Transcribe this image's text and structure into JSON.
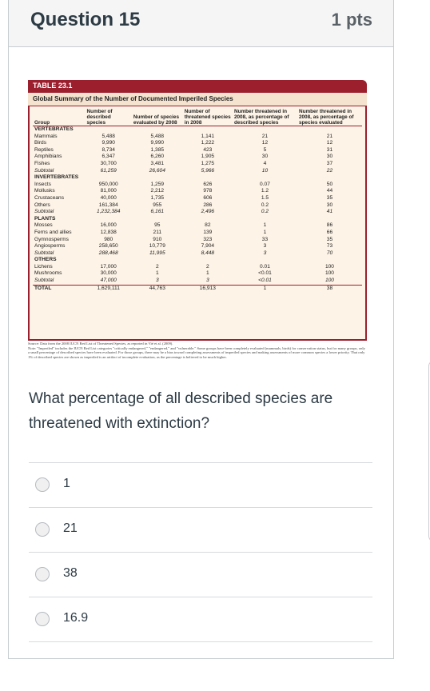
{
  "question": {
    "title": "Question 15",
    "points": "1 pts",
    "text": "What percentage of all described species are threatened with extinction?"
  },
  "figure": {
    "tag": "TABLE 23.1",
    "title": "Global Summary of the Number of Documented Imperiled Species",
    "headers": [
      "Group",
      "Number of described species",
      "Number of species evaluated by 2008",
      "Number of threatened species in 2008",
      "Number threatened in 2008, as percentage of described species",
      "Number threatened in 2008, as percentage of species evaluated"
    ],
    "rows": [
      {
        "kind": "group",
        "cells": [
          "VERTEBRATES",
          "",
          "",
          "",
          "",
          ""
        ]
      },
      {
        "kind": "row",
        "cells": [
          "Mammals",
          "5,488",
          "5,488",
          "1,141",
          "21",
          "21"
        ]
      },
      {
        "kind": "row",
        "cells": [
          "Birds",
          "9,990",
          "9,990",
          "1,222",
          "12",
          "12"
        ]
      },
      {
        "kind": "row",
        "cells": [
          "Reptiles",
          "8,734",
          "1,385",
          "423",
          "5",
          "31"
        ]
      },
      {
        "kind": "row",
        "cells": [
          "Amphibians",
          "6,347",
          "6,260",
          "1,905",
          "30",
          "30"
        ]
      },
      {
        "kind": "row",
        "cells": [
          "Fishes",
          "30,700",
          "3,481",
          "1,275",
          "4",
          "37"
        ]
      },
      {
        "kind": "sub",
        "cells": [
          "Subtotal",
          "61,259",
          "26,604",
          "5,966",
          "10",
          "22"
        ]
      },
      {
        "kind": "group",
        "cells": [
          "INVERTEBRATES",
          "",
          "",
          "",
          "",
          ""
        ]
      },
      {
        "kind": "row",
        "cells": [
          "Insects",
          "950,000",
          "1,259",
          "626",
          "0.07",
          "50"
        ]
      },
      {
        "kind": "row",
        "cells": [
          "Mollusks",
          "81,000",
          "2,212",
          "978",
          "1.2",
          "44"
        ]
      },
      {
        "kind": "row",
        "cells": [
          "Crustaceans",
          "40,000",
          "1,735",
          "606",
          "1.5",
          "35"
        ]
      },
      {
        "kind": "row",
        "cells": [
          "Others",
          "161,384",
          "955",
          "286",
          "0.2",
          "30"
        ]
      },
      {
        "kind": "sub",
        "cells": [
          "Subtotal",
          "1,232,384",
          "6,161",
          "2,496",
          "0.2",
          "41"
        ]
      },
      {
        "kind": "group",
        "cells": [
          "PLANTS",
          "",
          "",
          "",
          "",
          ""
        ]
      },
      {
        "kind": "row",
        "cells": [
          "Mosses",
          "16,000",
          "95",
          "82",
          "1",
          "86"
        ]
      },
      {
        "kind": "row",
        "cells": [
          "Ferns and allies",
          "12,838",
          "211",
          "139",
          "1",
          "66"
        ]
      },
      {
        "kind": "row",
        "cells": [
          "Gymnosperms",
          "980",
          "910",
          "323",
          "33",
          "35"
        ]
      },
      {
        "kind": "row",
        "cells": [
          "Angiosperms",
          "258,650",
          "10,779",
          "7,904",
          "3",
          "73"
        ]
      },
      {
        "kind": "sub",
        "cells": [
          "Subtotal",
          "288,468",
          "11,995",
          "8,448",
          "3",
          "70"
        ]
      },
      {
        "kind": "group",
        "cells": [
          "OTHERS",
          "",
          "",
          "",
          "",
          ""
        ]
      },
      {
        "kind": "row",
        "cells": [
          "Lichens",
          "17,000",
          "2",
          "2",
          "0.01",
          "100"
        ]
      },
      {
        "kind": "row",
        "cells": [
          "Mushrooms",
          "30,000",
          "1",
          "1",
          "<0.01",
          "100"
        ]
      },
      {
        "kind": "sub",
        "cells": [
          "Subtotal",
          "47,000",
          "3",
          "3",
          "<0.01",
          "100"
        ]
      },
      {
        "kind": "total",
        "cells": [
          "TOTAL",
          "1,629,111",
          "44,763",
          "16,913",
          "1",
          "38"
        ]
      }
    ],
    "source": "Source: Data from the 2008 IUCN Red List of Threatened Species, as reported in Vié et al. (2009).",
    "note": "Note: \"Imperiled\" includes the IUCN Red List categories \"critically endangered,\" \"endangered,\" and \"vulnerable.\" Some groups have been completely evaluated (mammals, birds) for conservation status, but for many groups, only a small percentage of described species have been evaluated. For those groups, there may be a bias toward completing assessments of imperiled species and making assessments of more common species a lower priority. That only 1% of described species are shown as imperiled is an artifact of incomplete evaluation, as the percentage is believed to be much higher."
  },
  "answers": [
    "1",
    "21",
    "38",
    "16.9"
  ]
}
